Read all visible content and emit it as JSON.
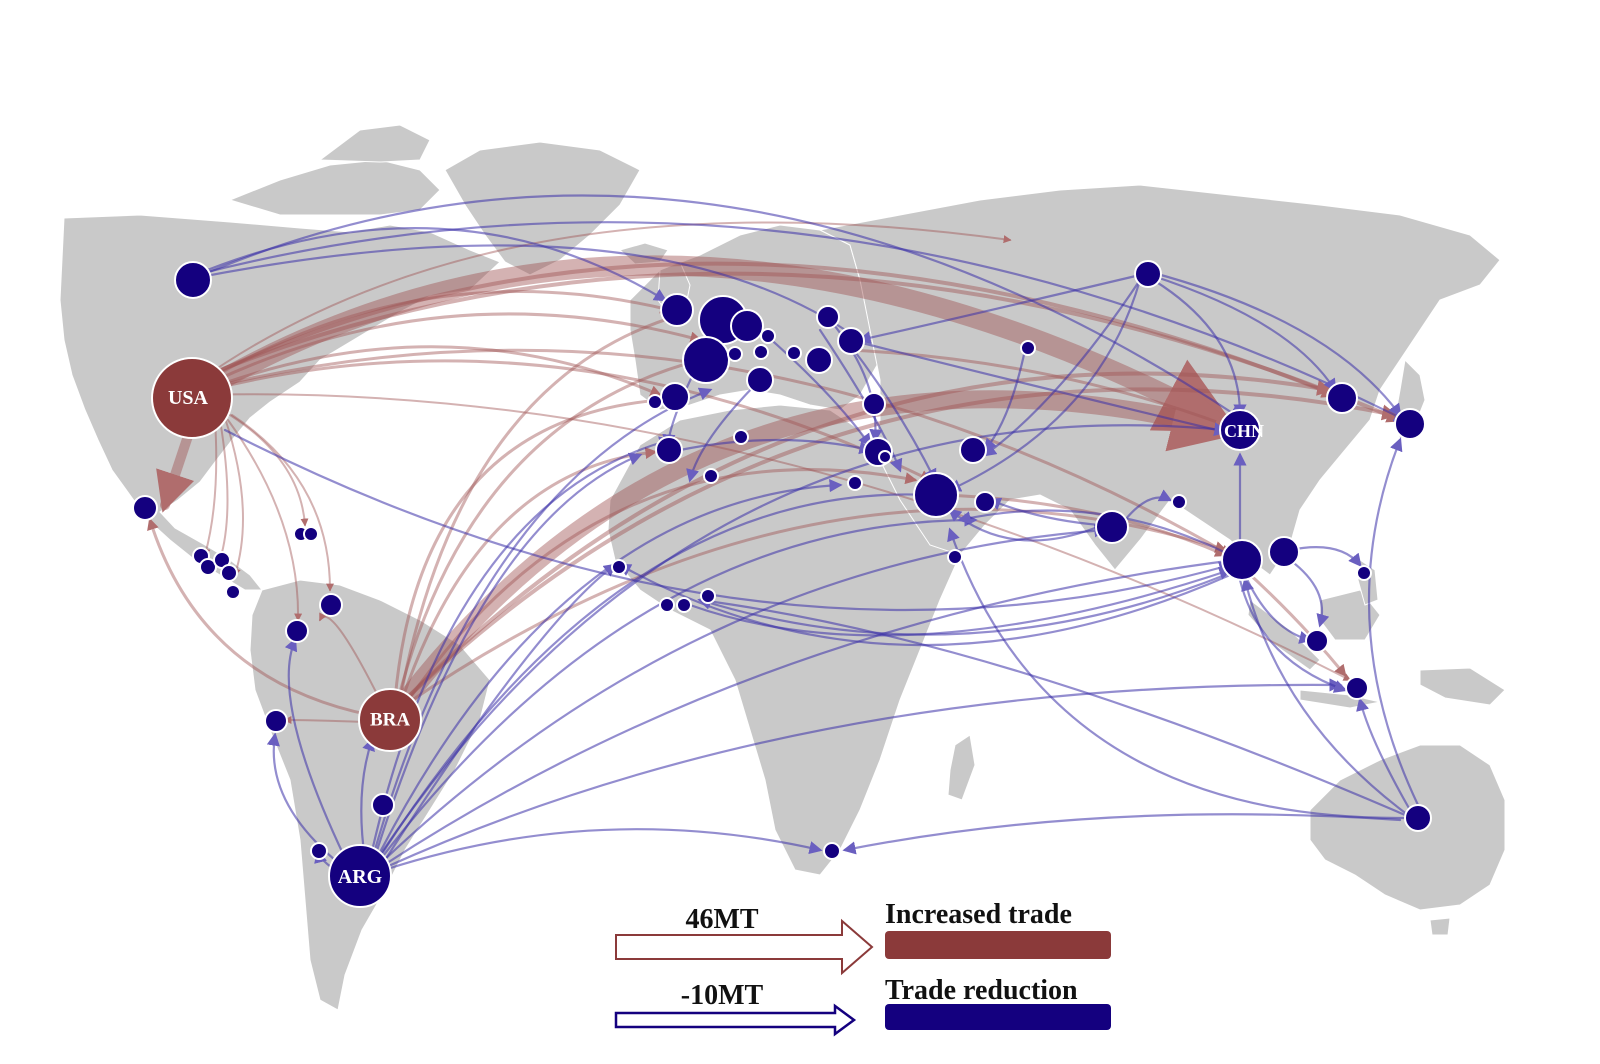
{
  "colors": {
    "increase": "#8b3a3a",
    "reduction": "#1a0a8c",
    "land": "#c9c9c9",
    "node": "#14007f"
  },
  "node_labels": {
    "usa": "USA",
    "bra": "BRA",
    "arg": "ARG",
    "chn": "CHN"
  },
  "legend": {
    "increase_value": "46MT",
    "increase_label": "Increased trade",
    "reduction_value": "-10MT",
    "reduction_label": "Trade reduction"
  }
}
